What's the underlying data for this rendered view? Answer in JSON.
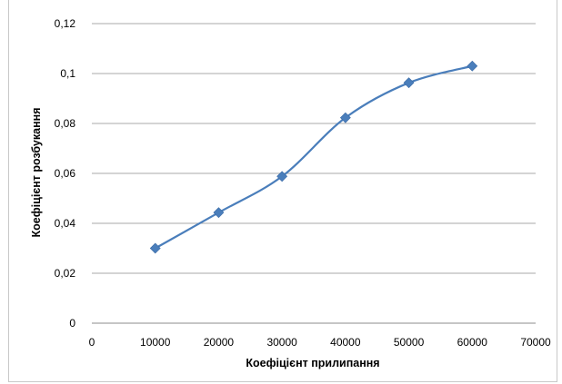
{
  "chart_data": {
    "type": "line",
    "smooth": true,
    "marker": "diamond",
    "color": "#4a7ebb",
    "grid": "horizontal",
    "legend": "none",
    "xlabel": "Коефіцієнт прилипання",
    "ylabel": "Коефіцієнт розбукання",
    "xlim": [
      0,
      70000
    ],
    "ylim": [
      0,
      0.12
    ],
    "x_ticks": [
      "0",
      "10000",
      "20000",
      "30000",
      "40000",
      "50000",
      "60000",
      "70000"
    ],
    "y_ticks": [
      "0",
      "0,02",
      "0,04",
      "0,06",
      "0,08",
      "0,1",
      "0,12"
    ],
    "series": [
      {
        "x": [
          10000,
          20000,
          30000,
          40000,
          50000,
          60000
        ],
        "y": [
          0.03,
          0.0443,
          0.0588,
          0.0823,
          0.0963,
          0.103
        ]
      }
    ]
  }
}
